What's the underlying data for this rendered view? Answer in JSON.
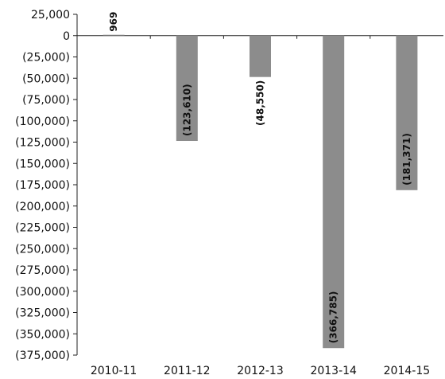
{
  "chart_data": {
    "type": "bar",
    "categories": [
      "2010-11",
      "2011-12",
      "2012-13",
      "2013-14",
      "2014-15"
    ],
    "values": [
      969,
      -123610,
      -48550,
      -366785,
      -181371
    ],
    "data_labels": [
      "969",
      "(123,610)",
      "(48,550)",
      "(366,785)",
      "(181,371)"
    ],
    "title": "",
    "xlabel": "",
    "ylabel": "",
    "ylim": [
      -375000,
      25000
    ],
    "y_ticks": [
      25000,
      0,
      -25000,
      -50000,
      -75000,
      -100000,
      -125000,
      -150000,
      -175000,
      -200000,
      -225000,
      -250000,
      -275000,
      -300000,
      -325000,
      -350000,
      -375000
    ],
    "y_tick_labels": [
      "25,000",
      "0",
      "(25,000)",
      "(50,000)",
      "(75,000)",
      "(100,000)",
      "(125,000)",
      "(150,000)",
      "(175,000)",
      "(200,000)",
      "(225,000)",
      "(250,000)",
      "(275,000)",
      "(300,000)",
      "(325,000)",
      "(350,000)",
      "(375,000)"
    ],
    "grid": false,
    "legend": "none",
    "bar_color": "#8c8c8c",
    "axis_color": "#222222"
  }
}
